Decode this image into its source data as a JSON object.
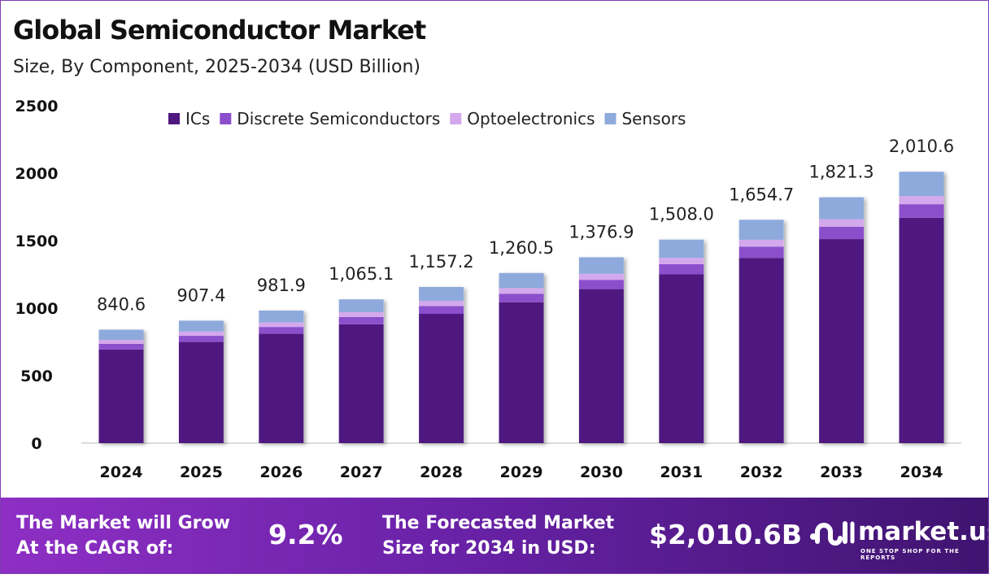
{
  "chart_data": {
    "type": "bar",
    "stacked": true,
    "title": "Global Semiconductor Market",
    "subtitle": "Size, By Component, 2025-2034 (USD Billion)",
    "categories": [
      "2024",
      "2025",
      "2026",
      "2027",
      "2028",
      "2029",
      "2030",
      "2031",
      "2032",
      "2033",
      "2034"
    ],
    "series": [
      {
        "name": "ICs",
        "color": "#4e1880",
        "values": [
          693.5,
          749.5,
          811.5,
          880.8,
          957.9,
          1044.0,
          1141.0,
          1250.1,
          1372.4,
          1511.7,
          1669.8
        ]
      },
      {
        "name": "Discrete Semiconductors",
        "color": "#8b4fcc",
        "values": [
          42.0,
          45.4,
          49.1,
          53.3,
          57.9,
          63.0,
          68.8,
          75.4,
          82.7,
          91.1,
          100.5
        ]
      },
      {
        "name": "Optoelectronics",
        "color": "#d4a8ec",
        "values": [
          29.4,
          31.3,
          33.4,
          35.7,
          38.2,
          41.0,
          44.1,
          47.5,
          51.3,
          55.5,
          60.3
        ]
      },
      {
        "name": "Sensors",
        "color": "#8eaadc",
        "values": [
          75.7,
          81.2,
          87.9,
          95.3,
          103.2,
          112.5,
          123.0,
          135.0,
          148.3,
          163.0,
          180.0
        ]
      }
    ],
    "totals": [
      "840.6",
      "907.4",
      "981.9",
      "1,065.1",
      "1,157.2",
      "1,260.5",
      "1,376.9",
      "1,508.0",
      "1,654.7",
      "1,821.3",
      "2,010.6"
    ],
    "yticks": [
      "0",
      "500",
      "1000",
      "1500",
      "2000",
      "2500"
    ],
    "ylim": [
      0,
      2500
    ],
    "legend_position": "top",
    "grid": false
  },
  "banner": {
    "cagr_label": "The Market will Grow At the CAGR of:",
    "cagr_value": "9.2%",
    "forecast_label": "The Forecasted Market Size for 2034 in USD:",
    "forecast_value": "$2,010.6B",
    "brand_name": "market.us",
    "brand_tagline": "ONE STOP SHOP FOR THE REPORTS"
  }
}
